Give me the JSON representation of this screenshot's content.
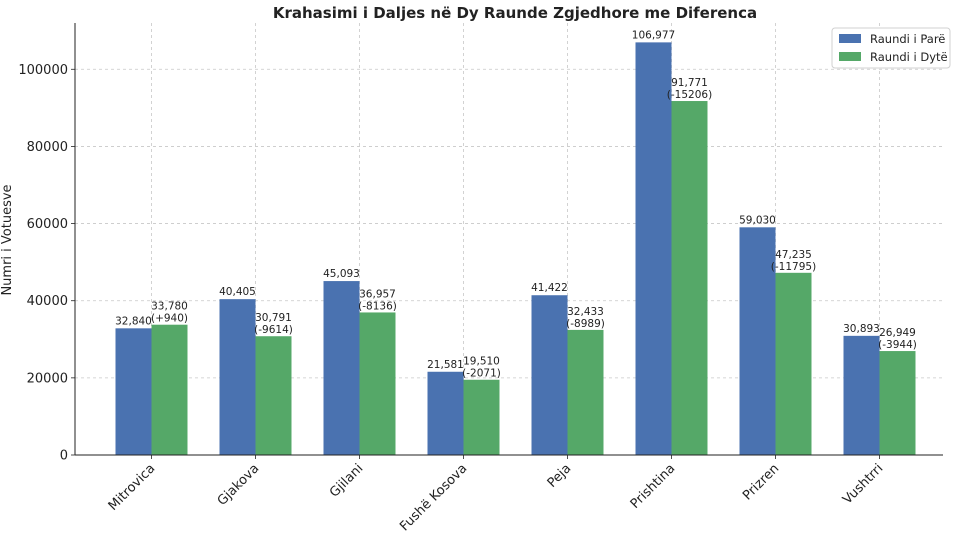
{
  "chart_data": {
    "type": "bar",
    "title": "Krahasimi i Daljes në Dy Raunde Zgjedhore me Diferenca",
    "xlabel": "",
    "ylabel": "Numri i Votuesve",
    "ylim": [
      0,
      112000
    ],
    "yticks": [
      0,
      20000,
      40000,
      60000,
      80000,
      100000
    ],
    "ytick_labels": [
      "0",
      "20000",
      "40000",
      "60000",
      "80000",
      "100000"
    ],
    "grid": true,
    "legend_position": "top-right",
    "categories": [
      "Mitrovica",
      "Gjakova",
      "Gjilani",
      "Fushë Kosova",
      "Peja",
      "Prishtina",
      "Prizren",
      "Vushtrri"
    ],
    "series": [
      {
        "name": "Raundi i Parë",
        "color": "#4a72b0",
        "values": [
          32840,
          40405,
          45093,
          21581,
          41422,
          106977,
          59030,
          30893
        ],
        "labels": [
          "32,840",
          "40,405",
          "45,093",
          "21,581",
          "41,422",
          "106,977",
          "59,030",
          "30,893"
        ]
      },
      {
        "name": "Raundi i Dytë",
        "color": "#55a868",
        "values": [
          33780,
          30791,
          36957,
          19510,
          32433,
          91771,
          47235,
          26949
        ],
        "labels": [
          "33,780",
          "30,791",
          "36,957",
          "19,510",
          "32,433",
          "91,771",
          "47,235",
          "26,949"
        ],
        "differences": [
          "(+940)",
          "(-9614)",
          "(-8136)",
          "(-2071)",
          "(-8989)",
          "(-15206)",
          "(-11795)",
          "(-3944)"
        ]
      }
    ]
  }
}
